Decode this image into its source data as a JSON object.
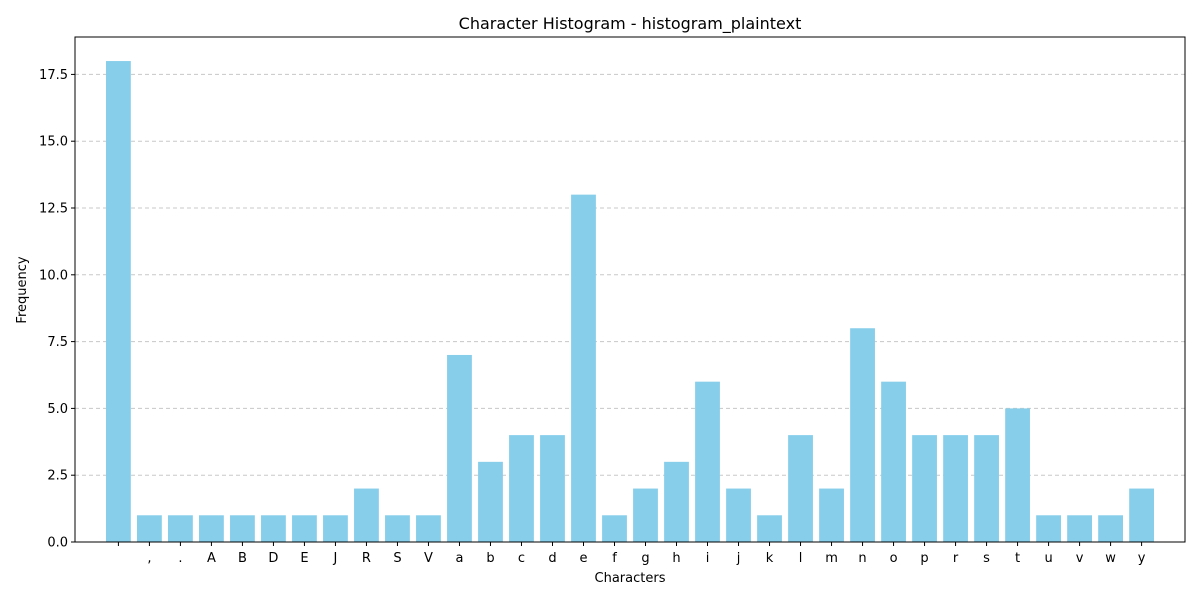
{
  "chart_data": {
    "type": "bar",
    "title": "Character Histogram - histogram_plaintext",
    "xlabel": "Characters",
    "ylabel": "Frequency",
    "categories": [
      " ",
      ",",
      ".",
      "A",
      "B",
      "D",
      "E",
      "J",
      "R",
      "S",
      "V",
      "a",
      "b",
      "c",
      "d",
      "e",
      "f",
      "g",
      "h",
      "i",
      "j",
      "k",
      "l",
      "m",
      "n",
      "o",
      "p",
      "r",
      "s",
      "t",
      "u",
      "v",
      "w",
      "y"
    ],
    "values": [
      18,
      1,
      1,
      1,
      1,
      1,
      1,
      1,
      2,
      1,
      1,
      7,
      3,
      4,
      4,
      13,
      1,
      2,
      3,
      6,
      2,
      1,
      4,
      2,
      8,
      6,
      4,
      4,
      4,
      5,
      1,
      1,
      1,
      2
    ],
    "ylim": [
      0,
      18.9
    ],
    "yticks": [
      0.0,
      2.5,
      5.0,
      7.5,
      10.0,
      12.5,
      15.0,
      17.5
    ],
    "ytick_labels": [
      "0.0",
      "2.5",
      "5.0",
      "7.5",
      "10.0",
      "12.5",
      "15.0",
      "17.5"
    ],
    "grid": "y-dashed",
    "bar_color": "#87ceeb",
    "grid_color": "#c8c8c8"
  }
}
